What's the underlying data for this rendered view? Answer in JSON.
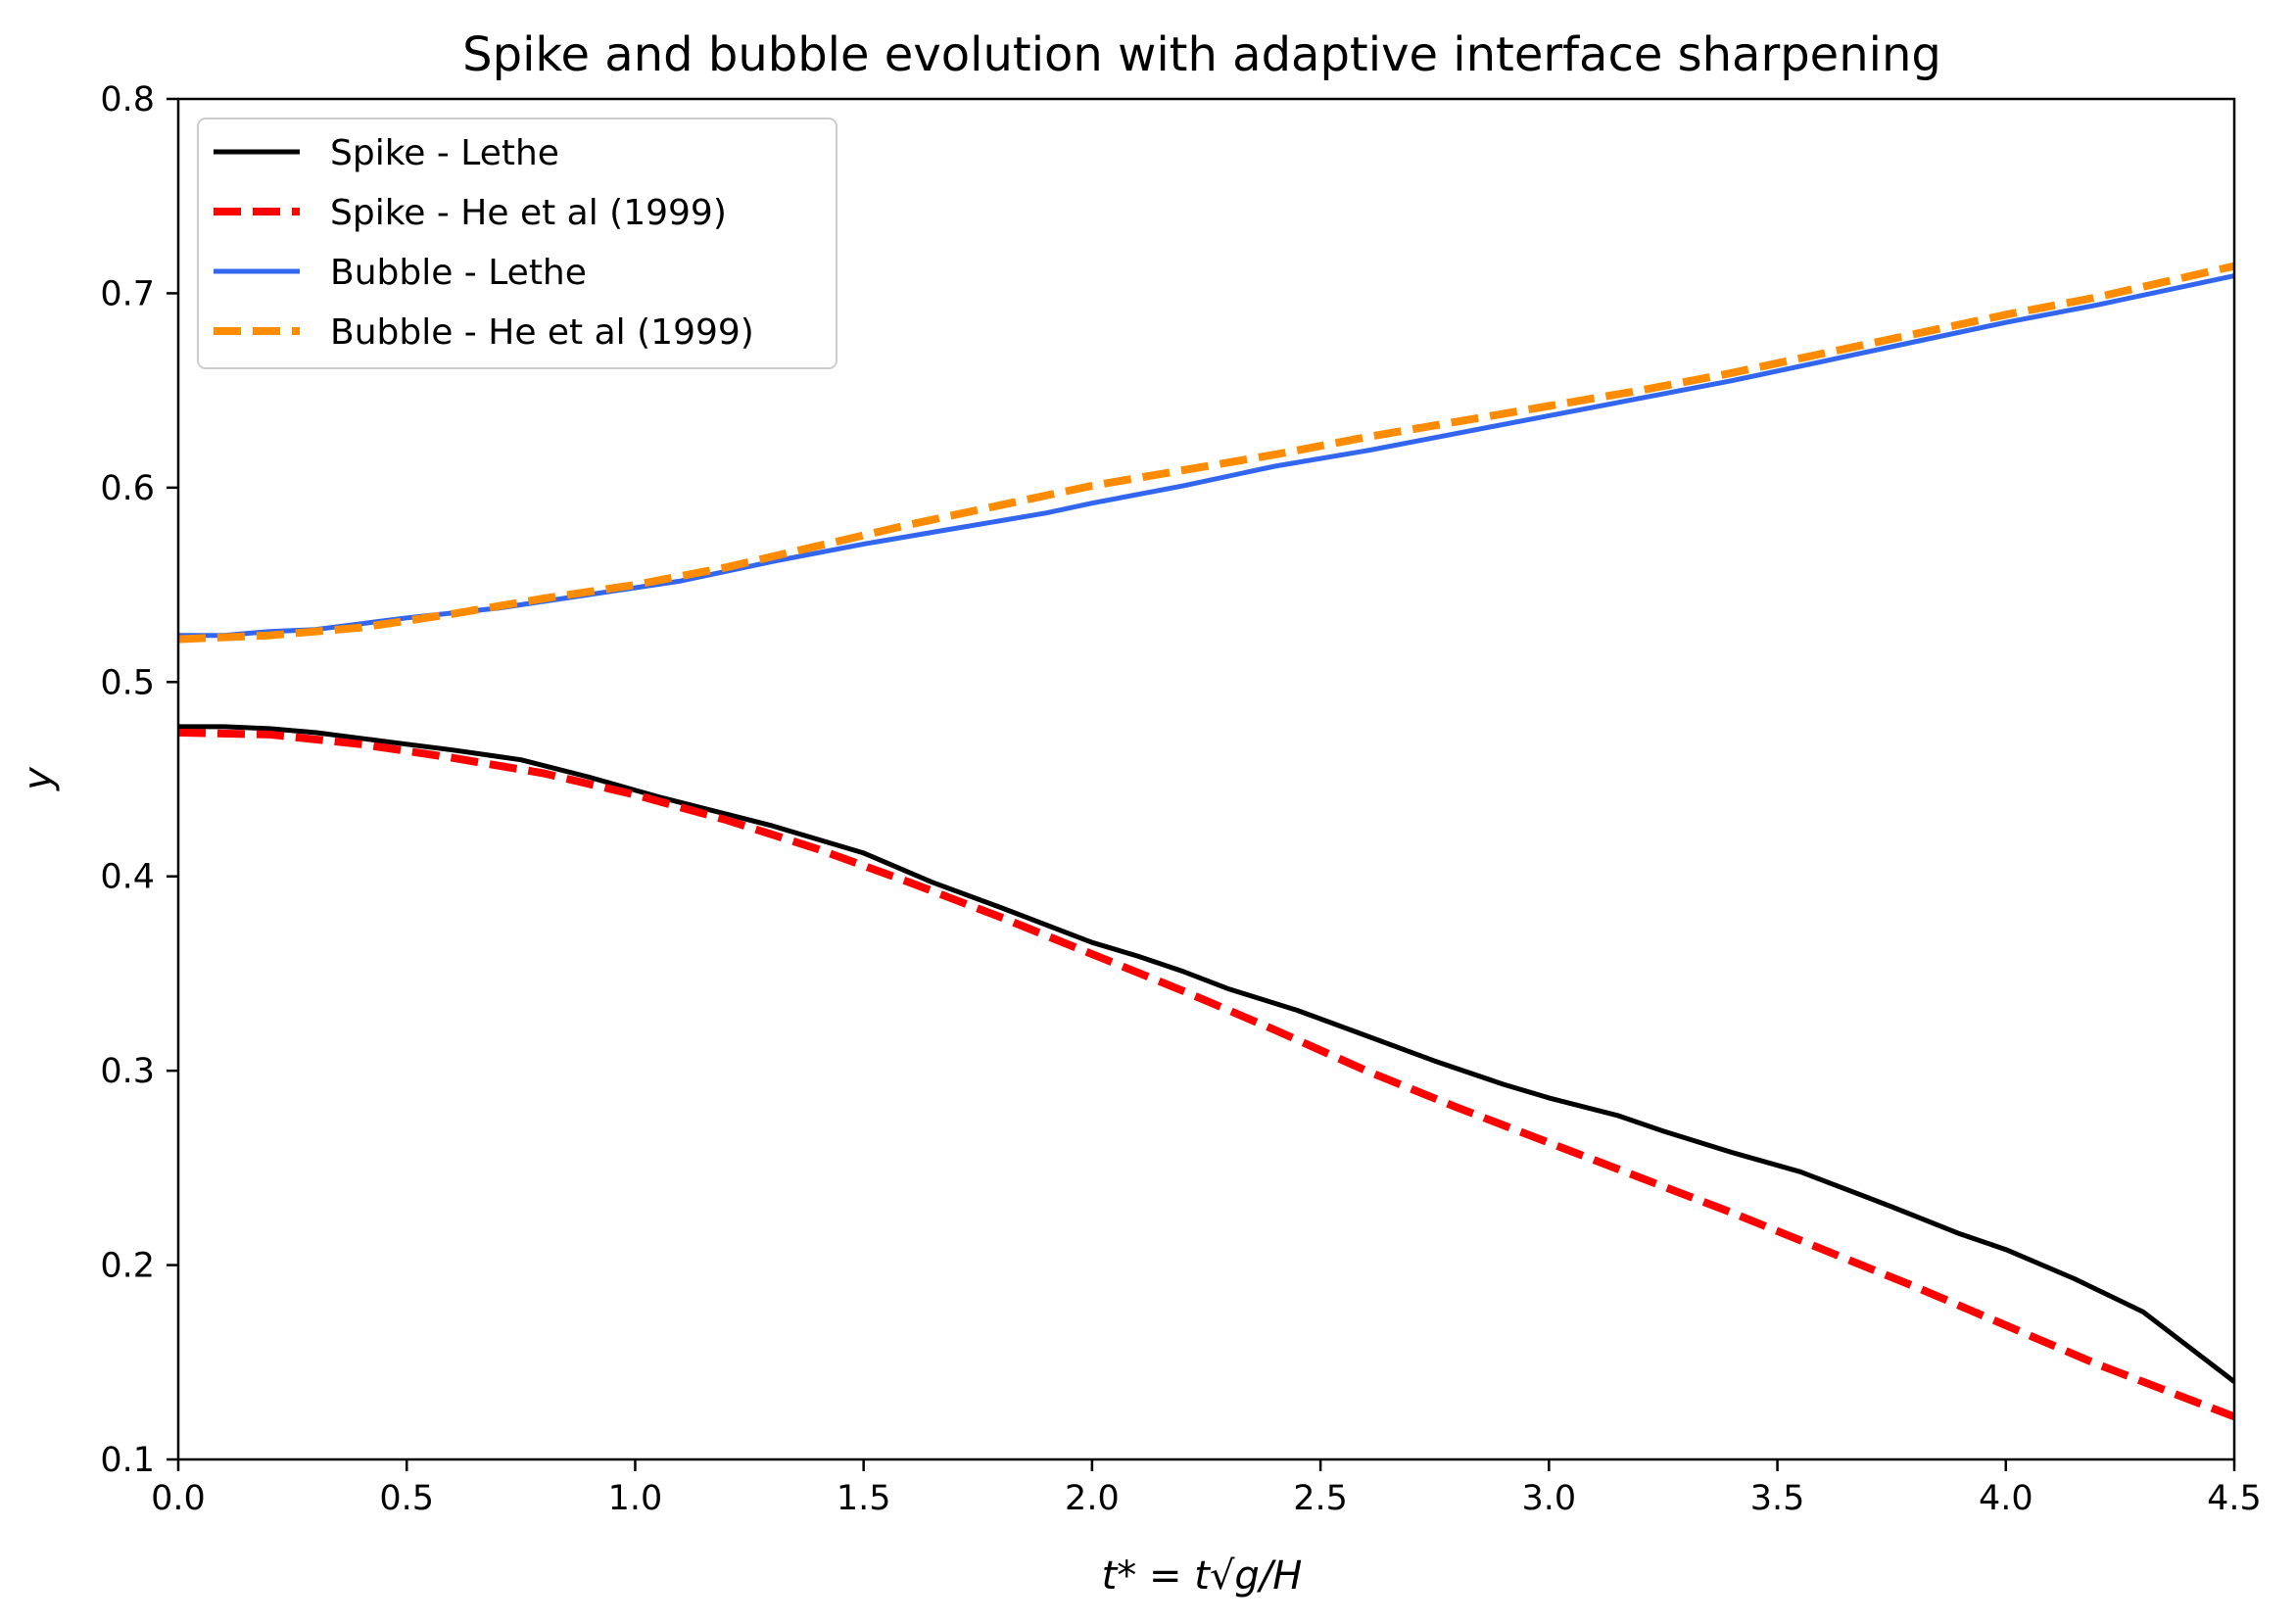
{
  "chart_data": {
    "type": "line",
    "title": "Spike and bubble evolution with adaptive interface sharpening",
    "xlabel": "t* = t√g/H",
    "ylabel": "y",
    "xlim": [
      0.0,
      4.5
    ],
    "ylim": [
      0.1,
      0.8
    ],
    "xticks": [
      "0.0",
      "0.5",
      "1.0",
      "1.5",
      "2.0",
      "2.5",
      "3.0",
      "3.5",
      "4.0",
      "4.5"
    ],
    "yticks": [
      "0.1",
      "0.2",
      "0.3",
      "0.4",
      "0.5",
      "0.6",
      "0.7",
      "0.8"
    ],
    "grid": false,
    "legend_position": "upper-left",
    "series": [
      {
        "name": "Spike - Lethe",
        "color": "#000000",
        "dash": "solid",
        "x": [
          0.0,
          0.1,
          0.2,
          0.3,
          0.4,
          0.5,
          0.6,
          0.75,
          0.9,
          1.05,
          1.2,
          1.3,
          1.5,
          1.65,
          1.8,
          2.0,
          2.1,
          2.2,
          2.3,
          2.45,
          2.6,
          2.75,
          2.9,
          3.0,
          3.15,
          3.25,
          3.4,
          3.55,
          3.75,
          3.9,
          4.0,
          4.15,
          4.3,
          4.5
        ],
        "y": [
          0.477,
          0.477,
          0.476,
          0.474,
          0.471,
          0.468,
          0.465,
          0.46,
          0.451,
          0.441,
          0.432,
          0.426,
          0.412,
          0.397,
          0.384,
          0.366,
          0.359,
          0.351,
          0.342,
          0.331,
          0.318,
          0.305,
          0.293,
          0.286,
          0.277,
          0.269,
          0.258,
          0.248,
          0.23,
          0.216,
          0.208,
          0.193,
          0.176,
          0.14
        ]
      },
      {
        "name": "Spike - He et al (1999)",
        "color": "#ff0000",
        "dash": "dashed",
        "x": [
          0.0,
          0.2,
          0.4,
          0.6,
          0.8,
          1.0,
          1.2,
          1.4,
          1.6,
          1.8,
          2.0,
          2.2,
          2.4,
          2.6,
          2.8,
          3.0,
          3.2,
          3.4,
          3.6,
          3.8,
          4.0,
          4.2,
          4.5
        ],
        "y": [
          0.474,
          0.473,
          0.468,
          0.461,
          0.453,
          0.442,
          0.429,
          0.414,
          0.397,
          0.379,
          0.36,
          0.341,
          0.321,
          0.3,
          0.281,
          0.263,
          0.245,
          0.227,
          0.208,
          0.189,
          0.169,
          0.149,
          0.122
        ]
      },
      {
        "name": "Bubble - Lethe",
        "color": "#3366ee",
        "dash": "solid",
        "x": [
          0.0,
          0.1,
          0.2,
          0.3,
          0.4,
          0.5,
          0.7,
          0.9,
          1.1,
          1.3,
          1.5,
          1.7,
          1.9,
          2.0,
          2.2,
          2.4,
          2.6,
          2.8,
          3.0,
          3.2,
          3.4,
          3.6,
          3.8,
          4.0,
          4.2,
          4.5
        ],
        "y": [
          0.524,
          0.524,
          0.526,
          0.527,
          0.53,
          0.533,
          0.538,
          0.545,
          0.552,
          0.562,
          0.571,
          0.579,
          0.587,
          0.592,
          0.601,
          0.611,
          0.619,
          0.628,
          0.637,
          0.646,
          0.655,
          0.665,
          0.675,
          0.685,
          0.694,
          0.709
        ]
      },
      {
        "name": "Bubble - He et al (1999)",
        "color": "#ff8c00",
        "dash": "dashed",
        "x": [
          0.0,
          0.2,
          0.4,
          0.6,
          0.8,
          1.0,
          1.2,
          1.4,
          1.6,
          1.8,
          2.0,
          2.2,
          2.4,
          2.6,
          2.8,
          3.0,
          3.2,
          3.4,
          3.6,
          3.8,
          4.0,
          4.2,
          4.5
        ],
        "y": [
          0.522,
          0.524,
          0.528,
          0.535,
          0.543,
          0.55,
          0.559,
          0.57,
          0.581,
          0.591,
          0.601,
          0.609,
          0.617,
          0.626,
          0.634,
          0.642,
          0.65,
          0.659,
          0.669,
          0.679,
          0.689,
          0.698,
          0.714
        ]
      }
    ]
  }
}
